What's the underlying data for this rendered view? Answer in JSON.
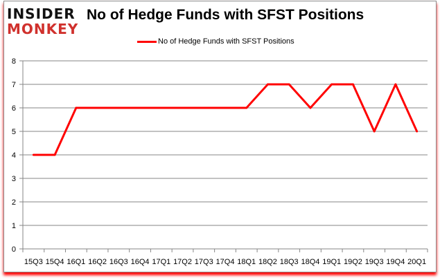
{
  "brand": {
    "line1": "INSIDER",
    "line2": "MONKEY"
  },
  "chart_data": {
    "type": "line",
    "title": "No of Hedge Funds with SFST Positions",
    "categories": [
      "15Q3",
      "15Q4",
      "16Q1",
      "16Q2",
      "16Q3",
      "16Q4",
      "17Q1",
      "17Q2",
      "17Q3",
      "17Q4",
      "18Q1",
      "18Q2",
      "18Q3",
      "18Q4",
      "19Q1",
      "19Q2",
      "19Q3",
      "19Q4",
      "20Q1"
    ],
    "series": [
      {
        "name": "No of Hedge Funds with SFST Positions",
        "values": [
          4,
          4,
          6,
          6,
          6,
          6,
          6,
          6,
          6,
          6,
          6,
          7,
          7,
          6,
          7,
          7,
          5,
          7,
          5
        ],
        "color": "#ff0000"
      }
    ],
    "ylim": [
      0,
      8
    ],
    "yticks": [
      0,
      1,
      2,
      3,
      4,
      5,
      6,
      7,
      8
    ],
    "grid": true,
    "legend": "top-center",
    "xlabel": "",
    "ylabel": ""
  }
}
